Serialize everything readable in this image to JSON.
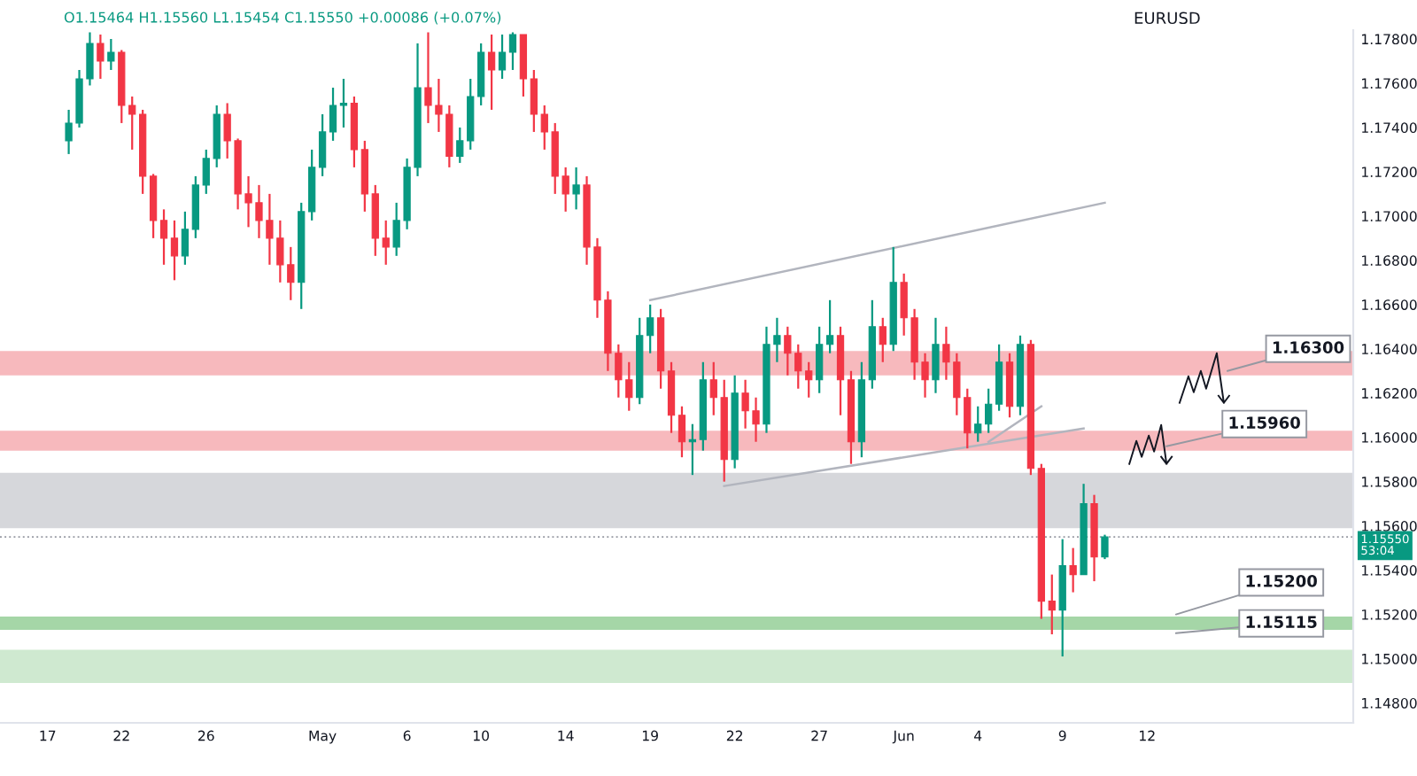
{
  "chart_data": {
    "type": "candlestick",
    "title": "EURUSD",
    "subtitle": "O1.15464 H1.15560 L1.15454 C1.15550 +0.00086 (+0.07%)",
    "categories": [
      null,
      null,
      null,
      null,
      "17",
      null,
      null,
      null,
      null,
      null,
      null,
      "22",
      null,
      null,
      null,
      null,
      null,
      null,
      null,
      "26",
      null,
      null,
      null,
      null,
      null,
      null,
      null,
      null,
      null,
      null,
      "May",
      null,
      null,
      null,
      null,
      null,
      null,
      null,
      "6",
      null,
      null,
      null,
      null,
      null,
      null,
      "10",
      null,
      null,
      null,
      null,
      null,
      null,
      null,
      "14",
      null,
      null,
      null,
      null,
      null,
      null,
      null,
      "19",
      null,
      null,
      null,
      null,
      null,
      null,
      null,
      "22",
      null,
      null,
      null,
      null,
      null,
      null,
      null,
      "27",
      null,
      null,
      null,
      null,
      null,
      null,
      null,
      "Jun",
      null,
      null,
      null,
      null,
      null,
      null,
      "4",
      null,
      null,
      null,
      null,
      null,
      null,
      null,
      "9",
      null,
      null,
      null,
      null,
      null,
      null,
      null,
      "12",
      null,
      null,
      null,
      null,
      null,
      null,
      null,
      null,
      null,
      null,
      null,
      null,
      null,
      null,
      null,
      null,
      null,
      null,
      null
    ],
    "ohlc": [
      null,
      null,
      null,
      null,
      null,
      null,
      [
        1.1734,
        1.1748,
        1.1728,
        1.1742
      ],
      [
        1.1742,
        1.1766,
        1.174,
        1.1762
      ],
      [
        1.1762,
        1.1783,
        1.1759,
        1.1778
      ],
      [
        1.1778,
        1.1782,
        1.1762,
        1.177
      ],
      [
        1.177,
        1.178,
        1.1766,
        1.1774
      ],
      [
        1.1774,
        1.1775,
        1.1742,
        1.175
      ],
      [
        1.175,
        1.1754,
        1.173,
        1.1746
      ],
      [
        1.1746,
        1.1748,
        1.171,
        1.1718
      ],
      [
        1.1718,
        1.1719,
        1.169,
        1.1698
      ],
      [
        1.1698,
        1.1703,
        1.1678,
        1.169
      ],
      [
        1.169,
        1.1698,
        1.1671,
        1.1682
      ],
      [
        1.1682,
        1.1702,
        1.1678,
        1.1694
      ],
      [
        1.1694,
        1.1718,
        1.169,
        1.1714
      ],
      [
        1.1714,
        1.173,
        1.171,
        1.1726
      ],
      [
        1.1726,
        1.175,
        1.1722,
        1.1746
      ],
      [
        1.1746,
        1.1751,
        1.1726,
        1.1734
      ],
      [
        1.1734,
        1.1735,
        1.1703,
        1.171
      ],
      [
        1.171,
        1.1718,
        1.1695,
        1.1706
      ],
      [
        1.1706,
        1.1714,
        1.169,
        1.1698
      ],
      [
        1.1698,
        1.171,
        1.1678,
        1.169
      ],
      [
        1.169,
        1.1698,
        1.167,
        1.1678
      ],
      [
        1.1678,
        1.1686,
        1.1662,
        1.167
      ],
      [
        1.167,
        1.1706,
        1.1658,
        1.1702
      ],
      [
        1.1702,
        1.173,
        1.1698,
        1.1722
      ],
      [
        1.1722,
        1.1746,
        1.1718,
        1.1738
      ],
      [
        1.1738,
        1.1758,
        1.1734,
        1.175
      ],
      [
        1.175,
        1.1762,
        1.174,
        1.1751
      ],
      [
        1.1751,
        1.1754,
        1.1722,
        1.173
      ],
      [
        1.173,
        1.1734,
        1.1702,
        1.171
      ],
      [
        1.171,
        1.1714,
        1.1682,
        1.169
      ],
      [
        1.169,
        1.1698,
        1.1678,
        1.1686
      ],
      [
        1.1686,
        1.1706,
        1.1682,
        1.1698
      ],
      [
        1.1698,
        1.1726,
        1.1694,
        1.1722
      ],
      [
        1.1722,
        1.1778,
        1.1718,
        1.1758
      ],
      [
        1.1758,
        1.1783,
        1.1742,
        1.175
      ],
      [
        1.175,
        1.1762,
        1.1738,
        1.1746
      ],
      [
        1.1746,
        1.175,
        1.1722,
        1.1727
      ],
      [
        1.1727,
        1.174,
        1.1724,
        1.1734
      ],
      [
        1.1734,
        1.1762,
        1.173,
        1.1754
      ],
      [
        1.1754,
        1.1778,
        1.175,
        1.1774
      ],
      [
        1.1774,
        1.1782,
        1.1748,
        1.1766
      ],
      [
        1.1766,
        1.1782,
        1.1762,
        1.1774
      ],
      [
        1.1774,
        1.1783,
        1.1766,
        1.1782
      ],
      [
        1.1782,
        1.1782,
        1.1754,
        1.1762
      ],
      [
        1.1762,
        1.1766,
        1.1738,
        1.1746
      ],
      [
        1.1746,
        1.175,
        1.173,
        1.1738
      ],
      [
        1.1738,
        1.1742,
        1.171,
        1.1718
      ],
      [
        1.1718,
        1.1722,
        1.1702,
        1.171
      ],
      [
        1.171,
        1.1722,
        1.1703,
        1.1714
      ],
      [
        1.1714,
        1.1718,
        1.1678,
        1.1686
      ],
      [
        1.1686,
        1.169,
        1.1654,
        1.1662
      ],
      [
        1.1662,
        1.1666,
        1.163,
        1.1638
      ],
      [
        1.1638,
        1.1642,
        1.1618,
        1.1626
      ],
      [
        1.1626,
        1.1634,
        1.1612,
        1.1618
      ],
      [
        1.1618,
        1.1654,
        1.1615,
        1.1646
      ],
      [
        1.1646,
        1.166,
        1.1638,
        1.1654
      ],
      [
        1.1654,
        1.1658,
        1.1622,
        1.163
      ],
      [
        1.163,
        1.1634,
        1.1602,
        1.161
      ],
      [
        1.161,
        1.1614,
        1.1591,
        1.1598
      ],
      [
        1.1598,
        1.1606,
        1.1583,
        1.1599
      ],
      [
        1.1599,
        1.1634,
        1.1594,
        1.1626
      ],
      [
        1.1626,
        1.1634,
        1.161,
        1.1618
      ],
      [
        1.1618,
        1.1626,
        1.158,
        1.159
      ],
      [
        1.159,
        1.1628,
        1.1586,
        1.162
      ],
      [
        1.162,
        1.1626,
        1.1604,
        1.1612
      ],
      [
        1.1612,
        1.1618,
        1.1598,
        1.1606
      ],
      [
        1.1606,
        1.165,
        1.1602,
        1.1642
      ],
      [
        1.1642,
        1.1654,
        1.1634,
        1.1646
      ],
      [
        1.1646,
        1.165,
        1.1628,
        1.1638
      ],
      [
        1.1638,
        1.1642,
        1.1622,
        1.163
      ],
      [
        1.163,
        1.1634,
        1.1618,
        1.1626
      ],
      [
        1.1626,
        1.165,
        1.162,
        1.1642
      ],
      [
        1.1642,
        1.1662,
        1.1638,
        1.1646
      ],
      [
        1.1646,
        1.165,
        1.161,
        1.1626
      ],
      [
        1.1626,
        1.163,
        1.1588,
        1.1598
      ],
      [
        1.1598,
        1.1634,
        1.1591,
        1.1626
      ],
      [
        1.1626,
        1.1662,
        1.1622,
        1.165
      ],
      [
        1.165,
        1.1654,
        1.1634,
        1.1642
      ],
      [
        1.1642,
        1.1686,
        1.1639,
        1.167
      ],
      [
        1.167,
        1.1674,
        1.1646,
        1.1654
      ],
      [
        1.1654,
        1.1658,
        1.1626,
        1.1634
      ],
      [
        1.1634,
        1.1638,
        1.1618,
        1.1626
      ],
      [
        1.1626,
        1.1654,
        1.162,
        1.1642
      ],
      [
        1.1642,
        1.165,
        1.1626,
        1.1634
      ],
      [
        1.1634,
        1.1638,
        1.161,
        1.1618
      ],
      [
        1.1618,
        1.1622,
        1.1595,
        1.1602
      ],
      [
        1.1602,
        1.1614,
        1.1598,
        1.1606
      ],
      [
        1.1606,
        1.1622,
        1.1602,
        1.1615
      ],
      [
        1.1615,
        1.1642,
        1.1612,
        1.1634
      ],
      [
        1.1634,
        1.1638,
        1.1609,
        1.1614
      ],
      [
        1.1614,
        1.1646,
        1.161,
        1.1642
      ],
      [
        1.1642,
        1.1644,
        1.1583,
        1.1586
      ],
      [
        1.1586,
        1.1588,
        1.1518,
        1.1526
      ],
      [
        1.1526,
        1.1538,
        1.1511,
        1.1522
      ],
      [
        1.1522,
        1.1554,
        1.1501,
        1.1542
      ],
      [
        1.1542,
        1.155,
        1.153,
        1.1538
      ],
      [
        1.1538,
        1.1579,
        1.1538,
        1.157
      ],
      [
        1.157,
        1.1574,
        1.1535,
        1.1546
      ],
      [
        1.1546,
        1.1556,
        1.1545,
        1.1555
      ],
      null,
      null,
      null,
      null,
      null,
      null,
      null,
      null,
      null,
      null,
      null,
      null,
      null,
      null,
      null,
      null,
      null,
      null,
      null,
      null,
      null,
      null,
      null
    ],
    "colors": [
      null,
      null,
      null,
      null,
      null,
      null,
      "#089981",
      "#089981",
      "#089981",
      "#f23645",
      "#089981",
      "#f23645",
      "#f23645",
      "#f23645",
      "#f23645",
      "#f23645",
      "#f23645",
      "#089981",
      "#089981",
      "#089981",
      "#089981",
      "#f23645",
      "#f23645",
      "#f23645",
      "#f23645",
      "#f23645",
      "#f23645",
      "#f23645",
      "#089981",
      "#089981",
      "#089981",
      "#089981",
      "#089981",
      "#f23645",
      "#f23645",
      "#f23645",
      "#f23645",
      "#089981",
      "#089981",
      "#089981",
      "#f23645",
      "#f23645",
      "#f23645",
      "#089981",
      "#089981",
      "#089981",
      "#f23645",
      "#089981",
      "#089981",
      "#f23645",
      "#f23645",
      "#f23645",
      "#f23645",
      "#f23645",
      "#089981",
      "#f23645",
      "#f23645",
      "#f23645",
      "#f23645",
      "#f23645",
      "#089981",
      "#089981",
      "#f23645",
      "#f23645",
      "#f23645",
      "#089981",
      "#089981",
      "#f23645",
      "#f23645",
      "#089981",
      "#f23645",
      "#f23645",
      "#089981",
      "#089981",
      "#f23645",
      "#f23645",
      "#f23645",
      "#089981",
      "#089981",
      "#f23645",
      "#f23645",
      "#089981",
      "#089981",
      "#f23645",
      "#089981",
      "#f23645",
      "#f23645",
      "#f23645",
      "#089981",
      "#f23645",
      "#f23645",
      "#f23645",
      "#089981",
      "#089981",
      "#089981",
      "#f23645",
      "#089981",
      "#f23645",
      "#f23645",
      "#f23645",
      "#089981",
      "#f23645",
      "#089981",
      "#f23645",
      "#089981",
      null,
      null,
      null,
      null,
      null,
      null,
      null,
      null,
      null,
      null,
      null,
      null,
      null,
      null,
      null,
      null,
      null,
      null,
      null,
      null,
      null,
      null,
      null
    ],
    "series": [
      {
        "type": "line",
        "color": "#b2b5be",
        "values": [
          null,
          null,
          null,
          null,
          null,
          null,
          null,
          null,
          null,
          null,
          null,
          null,
          null,
          null,
          null,
          null,
          null,
          null,
          null,
          null,
          null,
          null,
          null,
          null,
          null,
          null,
          null,
          null,
          null,
          null,
          null,
          null,
          null,
          null,
          null,
          null,
          null,
          null,
          null,
          null,
          null,
          null,
          null,
          null,
          null,
          null,
          null,
          null,
          null,
          null,
          null,
          null,
          null,
          null,
          null,
          null,
          null,
          null,
          null,
          null,
          null,
          1.1662,
          null,
          null,
          null,
          null,
          null,
          null,
          null,
          null,
          null,
          null,
          null,
          null,
          null,
          null,
          null,
          null,
          null,
          null,
          null,
          null,
          null,
          null,
          null,
          null,
          null,
          null,
          null,
          null,
          null,
          null,
          null,
          null,
          null,
          null,
          null,
          null,
          null,
          null,
          null,
          null,
          null,
          null,
          1.1706,
          null,
          null,
          null,
          null,
          null,
          null,
          null,
          null,
          null,
          null,
          null,
          null,
          null,
          null,
          null,
          null,
          null,
          null,
          null,
          null,
          null,
          null,
          null
        ]
      },
      {
        "type": "line",
        "color": "#b2b5be",
        "values": [
          null,
          null,
          null,
          null,
          null,
          null,
          null,
          null,
          null,
          null,
          null,
          null,
          null,
          null,
          null,
          null,
          null,
          null,
          null,
          null,
          null,
          null,
          null,
          null,
          null,
          null,
          null,
          null,
          null,
          null,
          null,
          null,
          null,
          null,
          null,
          null,
          null,
          null,
          null,
          null,
          null,
          null,
          null,
          null,
          null,
          null,
          null,
          null,
          null,
          null,
          null,
          null,
          null,
          null,
          null,
          null,
          null,
          null,
          null,
          null,
          null,
          null,
          null,
          null,
          null,
          null,
          null,
          null,
          1.1578,
          null,
          null,
          null,
          null,
          null,
          null,
          null,
          null,
          null,
          null,
          null,
          null,
          null,
          null,
          null,
          null,
          null,
          null,
          null,
          null,
          null,
          null,
          null,
          null,
          null,
          null,
          null,
          null,
          null,
          null,
          null,
          null,
          null,
          1.1604,
          null,
          null,
          null,
          null,
          null,
          null,
          null,
          null,
          null,
          null,
          null,
          null,
          null,
          null,
          null,
          null,
          null,
          null,
          null,
          null,
          null,
          null,
          null,
          null,
          null
        ]
      },
      {
        "type": "line",
        "color": "#b2b5be",
        "values": [
          null,
          null,
          null,
          null,
          null,
          null,
          null,
          null,
          null,
          null,
          null,
          null,
          null,
          null,
          null,
          null,
          null,
          null,
          null,
          null,
          null,
          null,
          null,
          null,
          null,
          null,
          null,
          null,
          null,
          null,
          null,
          null,
          null,
          null,
          null,
          null,
          null,
          null,
          null,
          null,
          null,
          null,
          null,
          null,
          null,
          null,
          null,
          null,
          null,
          null,
          null,
          null,
          null,
          null,
          null,
          null,
          null,
          null,
          null,
          null,
          null,
          null,
          null,
          null,
          null,
          null,
          null,
          null,
          null,
          null,
          null,
          null,
          null,
          null,
          null,
          null,
          null,
          null,
          null,
          null,
          null,
          null,
          null,
          null,
          null,
          null,
          null,
          null,
          null,
          null,
          null,
          null,
          null,
          1.1598,
          null,
          null,
          null,
          null,
          1.1614,
          null,
          null,
          null,
          null,
          null,
          null,
          null,
          null,
          null,
          null,
          null,
          null,
          null,
          null,
          null,
          null,
          null,
          null,
          null,
          null,
          null,
          null,
          null,
          null,
          null,
          null,
          null,
          null,
          null
        ]
      }
    ],
    "ylim": [
      1.1471,
      1.1784
    ],
    "yticks": [
      {
        "value": 1.148,
        "label": "1.14800"
      },
      {
        "value": 1.15,
        "label": "1.15000"
      },
      {
        "value": 1.152,
        "label": "1.15200"
      },
      {
        "value": 1.154,
        "label": "1.15400"
      },
      {
        "value": 1.156,
        "label": "1.15600"
      },
      {
        "value": 1.158,
        "label": "1.15800"
      },
      {
        "value": 1.16,
        "label": "1.16000"
      },
      {
        "value": 1.162,
        "label": "1.16200"
      },
      {
        "value": 1.164,
        "label": "1.16400"
      },
      {
        "value": 1.166,
        "label": "1.16600"
      },
      {
        "value": 1.168,
        "label": "1.16800"
      },
      {
        "value": 1.17,
        "label": "1.17000"
      },
      {
        "value": 1.172,
        "label": "1.17200"
      },
      {
        "value": 1.174,
        "label": "1.17400"
      },
      {
        "value": 1.176,
        "label": "1.17600"
      },
      {
        "value": 1.178,
        "label": "1.17800"
      }
    ],
    "bands": [
      {
        "axis": "y",
        "from": 1.1559,
        "to": 1.1584,
        "color": "#d6d7db"
      },
      {
        "axis": "y",
        "from": 1.1628,
        "to": 1.1639,
        "color": "#f7b9bd"
      },
      {
        "axis": "y",
        "from": 1.1594,
        "to": 1.1603,
        "color": "#f7b9bd"
      },
      {
        "axis": "y",
        "from": 1.1513,
        "to": 1.1519,
        "color": "#a5d6a7"
      },
      {
        "axis": "y",
        "from": 1.1489,
        "to": 1.1504,
        "color": "#cfe9d0"
      }
    ],
    "ref_lines": [
      {
        "axis": "y",
        "value": 1.1555,
        "label": "1.15550\n53:04",
        "color": "#9598a1",
        "line_style": "dotted"
      }
    ],
    "annotations": [
      {
        "text": "1.16300",
        "y": 1.163
      },
      {
        "text": "1.15960",
        "y": 1.1596
      },
      {
        "text": "1.15200",
        "y": 1.152
      },
      {
        "text": "1.15115",
        "y": 1.15115
      }
    ],
    "grid": false
  }
}
